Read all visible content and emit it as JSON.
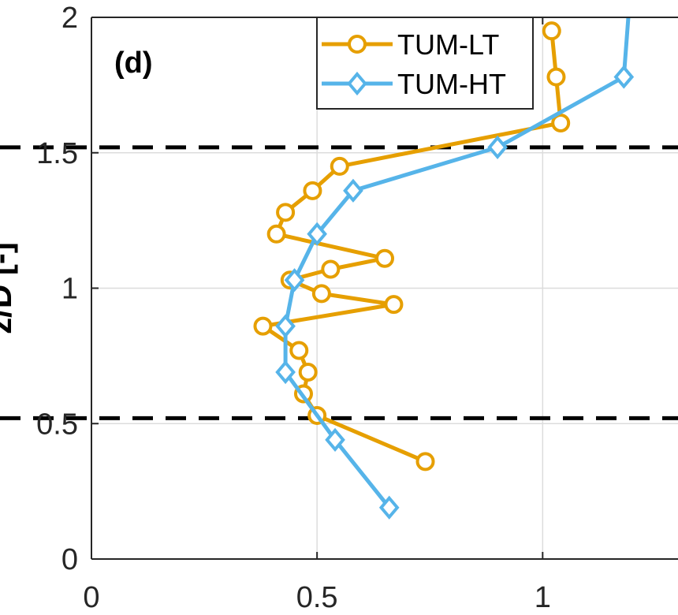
{
  "chart_data": {
    "type": "line",
    "panel_label": "(d)",
    "ylabel": "z/D [-]",
    "xlim": [
      0,
      1.3
    ],
    "ylim": [
      0,
      2
    ],
    "xticks": [
      0,
      0.5,
      1
    ],
    "xtick_labels": [
      "0",
      "0.5",
      "1"
    ],
    "yticks": [
      0,
      0.5,
      1,
      1.5,
      2
    ],
    "ytick_labels": [
      "0",
      "0.5",
      "1",
      "1.5",
      "2"
    ],
    "grid": true,
    "legend_position": "top-right",
    "reference_lines_y": [
      0.52,
      1.52
    ],
    "series": [
      {
        "name": "TUM-LT",
        "color": "#E69F00",
        "marker": "circle",
        "points": [
          {
            "x": 0.74,
            "y": 0.36
          },
          {
            "x": 0.5,
            "y": 0.53
          },
          {
            "x": 0.47,
            "y": 0.61
          },
          {
            "x": 0.48,
            "y": 0.69
          },
          {
            "x": 0.46,
            "y": 0.77
          },
          {
            "x": 0.38,
            "y": 0.86
          },
          {
            "x": 0.67,
            "y": 0.94
          },
          {
            "x": 0.51,
            "y": 0.98
          },
          {
            "x": 0.44,
            "y": 1.03
          },
          {
            "x": 0.53,
            "y": 1.07
          },
          {
            "x": 0.65,
            "y": 1.11
          },
          {
            "x": 0.41,
            "y": 1.2
          },
          {
            "x": 0.43,
            "y": 1.28
          },
          {
            "x": 0.49,
            "y": 1.36
          },
          {
            "x": 0.55,
            "y": 1.45
          },
          {
            "x": 1.04,
            "y": 1.61
          },
          {
            "x": 1.03,
            "y": 1.78
          },
          {
            "x": 1.02,
            "y": 1.95
          }
        ]
      },
      {
        "name": "TUM-HT",
        "color": "#56B4E9",
        "marker": "diamond",
        "points": [
          {
            "x": 0.66,
            "y": 0.19
          },
          {
            "x": 0.54,
            "y": 0.44
          },
          {
            "x": 0.43,
            "y": 0.69
          },
          {
            "x": 0.43,
            "y": 0.86
          },
          {
            "x": 0.45,
            "y": 1.03
          },
          {
            "x": 0.5,
            "y": 1.2
          },
          {
            "x": 0.58,
            "y": 1.36
          },
          {
            "x": 0.9,
            "y": 1.52
          },
          {
            "x": 1.18,
            "y": 1.78
          },
          {
            "x": 1.19,
            "y": 2.0
          }
        ]
      }
    ]
  }
}
